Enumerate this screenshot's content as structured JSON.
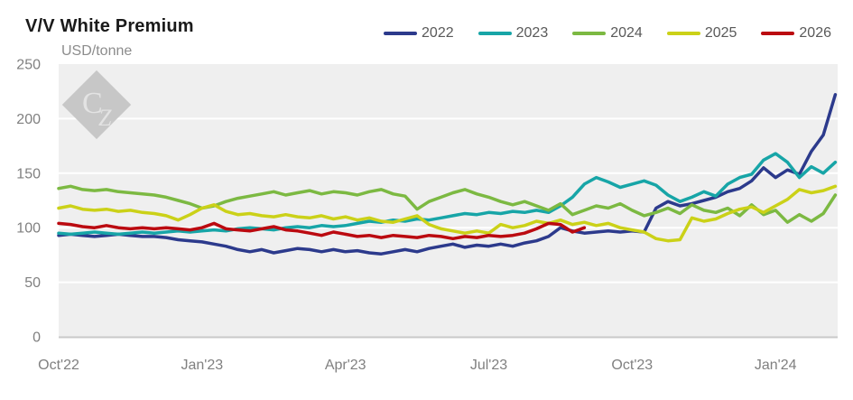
{
  "header": {
    "title": "V/V White Premium",
    "unit_label": "USD/tonne"
  },
  "watermark": {
    "text": "CZ"
  },
  "colors": {
    "title_text": "#1a1a1a",
    "subtitle_text": "#8c8c8c",
    "legend_text": "#595959",
    "tick_text": "#808080",
    "plot_bg": "#efefef",
    "gridline": "#ffffff",
    "axis_line": "#c9c9c9",
    "watermark_diamond": "#c7c7c7",
    "watermark_letters": "#e3e3e3"
  },
  "chart_data": {
    "type": "line",
    "title": "V/V White Premium",
    "ylabel": "USD/tonne",
    "xlabel": "",
    "ylim": [
      0,
      250
    ],
    "y_ticks": [
      0,
      50,
      100,
      150,
      200,
      250
    ],
    "x_ticks": [
      {
        "m": 0,
        "label": "Oct'22"
      },
      {
        "m": 3,
        "label": "Jan'23"
      },
      {
        "m": 6,
        "label": "Apr'23"
      },
      {
        "m": 9,
        "label": "Jul'23"
      },
      {
        "m": 12,
        "label": "Oct'23"
      },
      {
        "m": 15,
        "label": "Jan'24"
      }
    ],
    "x_axis_note": "time axis, months elapsed since Oct 2022; series sampled at 0.25-month (weekly) steps",
    "x_start_month": 0,
    "x_step": 0.25,
    "x_max_month": 16.3,
    "grid": "horizontal white gridlines at 50,100,150,200 on light-gray plot panel",
    "legend_position": "top-right",
    "series": [
      {
        "name": "2022",
        "color": "#2c3a8c",
        "values": [
          93,
          94,
          93,
          92,
          93,
          94,
          93,
          92,
          92,
          91,
          89,
          88,
          87,
          85,
          83,
          80,
          78,
          80,
          77,
          79,
          81,
          80,
          78,
          80,
          78,
          79,
          77,
          76,
          78,
          80,
          78,
          81,
          83,
          85,
          82,
          84,
          83,
          85,
          83,
          86,
          88,
          92,
          100,
          97,
          95,
          96,
          97,
          96,
          97,
          96,
          118,
          124,
          120,
          122,
          125,
          128,
          133,
          136,
          143,
          155,
          146,
          153,
          149,
          170,
          185,
          222
        ]
      },
      {
        "name": "2023",
        "color": "#17a5a7",
        "values": [
          95,
          94,
          95,
          96,
          95,
          94,
          95,
          96,
          95,
          96,
          97,
          96,
          97,
          98,
          97,
          99,
          100,
          99,
          98,
          100,
          101,
          100,
          102,
          101,
          102,
          104,
          106,
          105,
          107,
          106,
          108,
          107,
          109,
          111,
          113,
          112,
          114,
          113,
          115,
          114,
          116,
          114,
          120,
          128,
          140,
          146,
          142,
          137,
          140,
          143,
          139,
          130,
          124,
          128,
          133,
          129,
          140,
          146,
          149,
          162,
          168,
          160,
          146,
          156,
          150,
          160
        ]
      },
      {
        "name": "2024",
        "color": "#7cb942",
        "values": [
          136,
          138,
          135,
          134,
          135,
          133,
          132,
          131,
          130,
          128,
          125,
          122,
          118,
          120,
          124,
          127,
          129,
          131,
          133,
          130,
          132,
          134,
          131,
          133,
          132,
          130,
          133,
          135,
          131,
          129,
          117,
          124,
          128,
          132,
          135,
          131,
          128,
          124,
          121,
          124,
          120,
          116,
          122,
          112,
          116,
          120,
          118,
          122,
          116,
          111,
          114,
          118,
          113,
          121,
          116,
          114,
          118,
          111,
          121,
          112,
          116,
          105,
          112,
          106,
          113,
          130
        ]
      },
      {
        "name": "2025",
        "color": "#cbd118",
        "values": [
          118,
          120,
          117,
          116,
          117,
          115,
          116,
          114,
          113,
          111,
          107,
          112,
          118,
          121,
          115,
          112,
          113,
          111,
          110,
          112,
          110,
          109,
          111,
          108,
          110,
          107,
          109,
          106,
          105,
          108,
          111,
          103,
          99,
          97,
          95,
          97,
          95,
          103,
          100,
          102,
          106,
          104,
          107,
          103,
          105,
          102,
          104,
          100,
          98,
          96,
          90,
          88,
          89,
          109,
          106,
          108,
          113,
          117,
          119,
          114,
          120,
          126,
          135,
          132,
          134,
          138
        ]
      },
      {
        "name": "2026",
        "color": "#bb0a10",
        "values": [
          104,
          103,
          101,
          100,
          102,
          100,
          99,
          100,
          99,
          100,
          99,
          98,
          100,
          104,
          99,
          98,
          97,
          99,
          101,
          98,
          97,
          95,
          93,
          96,
          94,
          92,
          93,
          91,
          93,
          92,
          91,
          93,
          92,
          90,
          92,
          91,
          93,
          92,
          93,
          95,
          99,
          104,
          103,
          96,
          100
        ]
      }
    ]
  }
}
